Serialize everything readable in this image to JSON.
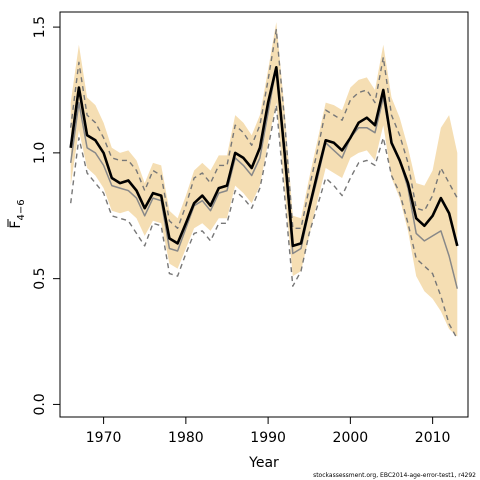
{
  "chart_data": {
    "type": "line",
    "xlabel": "Year",
    "ylabel_main": "F",
    "ylabel_sub": "4−6",
    "xlim": [
      1964.7,
      2014.3
    ],
    "ylim": [
      -0.05,
      1.56
    ],
    "x_ticks": [
      1970,
      1980,
      1990,
      2000,
      2010
    ],
    "y_ticks": [
      0.0,
      0.5,
      1.0,
      1.5
    ],
    "y_tick_labels": [
      "0.0",
      "0.5",
      "1.0",
      "1.5"
    ],
    "grid": false,
    "years": [
      1966,
      1967,
      1968,
      1969,
      1970,
      1971,
      1972,
      1973,
      1974,
      1975,
      1976,
      1977,
      1978,
      1979,
      1980,
      1981,
      1982,
      1983,
      1984,
      1985,
      1986,
      1987,
      1988,
      1989,
      1990,
      1991,
      1992,
      1993,
      1994,
      1995,
      1996,
      1997,
      1998,
      1999,
      2000,
      2001,
      2002,
      2003,
      2004,
      2005,
      2006,
      2007,
      2008,
      2009,
      2010,
      2011,
      2012,
      2013
    ],
    "series": [
      {
        "name": "",
        "role": "band_upper",
        "color": "#f5deb3",
        "values": [
          1.2,
          1.43,
          1.22,
          1.19,
          1.12,
          1.02,
          1.0,
          1.01,
          0.97,
          0.88,
          0.96,
          0.95,
          0.77,
          0.74,
          0.83,
          0.93,
          0.96,
          0.93,
          0.99,
          0.99,
          1.15,
          1.12,
          1.07,
          1.15,
          1.33,
          1.52,
          1.17,
          0.75,
          0.74,
          0.9,
          1.05,
          1.2,
          1.19,
          1.17,
          1.26,
          1.29,
          1.3,
          1.25,
          1.43,
          1.22,
          1.14,
          1.02,
          0.88,
          0.87,
          0.93,
          1.1,
          1.15,
          1.0
        ]
      },
      {
        "name": "",
        "role": "band_lower",
        "color": "#f5deb3",
        "values": [
          0.87,
          1.09,
          0.94,
          0.91,
          0.86,
          0.77,
          0.76,
          0.77,
          0.74,
          0.67,
          0.73,
          0.72,
          0.56,
          0.54,
          0.62,
          0.7,
          0.72,
          0.69,
          0.74,
          0.74,
          0.87,
          0.84,
          0.8,
          0.87,
          1.04,
          1.2,
          0.85,
          0.51,
          0.53,
          0.67,
          0.81,
          0.94,
          0.92,
          0.9,
          0.98,
          1.0,
          1.01,
          0.97,
          1.11,
          0.9,
          0.82,
          0.69,
          0.51,
          0.45,
          0.42,
          0.37,
          0.3,
          0.27
        ]
      },
      {
        "name": "",
        "role": "dashed_upper",
        "color": "#777777",
        "values": [
          1.1,
          1.36,
          1.15,
          1.12,
          1.06,
          0.98,
          0.97,
          0.97,
          0.93,
          0.85,
          0.93,
          0.91,
          0.73,
          0.7,
          0.79,
          0.9,
          0.92,
          0.88,
          0.95,
          0.95,
          1.11,
          1.08,
          1.03,
          1.11,
          1.29,
          1.49,
          1.13,
          0.7,
          0.7,
          0.86,
          1.01,
          1.17,
          1.15,
          1.13,
          1.21,
          1.24,
          1.25,
          1.2,
          1.38,
          1.15,
          1.07,
          0.96,
          0.78,
          0.77,
          0.83,
          0.94,
          0.88,
          0.82
        ]
      },
      {
        "name": "",
        "role": "dashed_lower",
        "color": "#777777",
        "values": [
          0.8,
          1.06,
          0.92,
          0.88,
          0.84,
          0.75,
          0.74,
          0.73,
          0.68,
          0.63,
          0.72,
          0.71,
          0.52,
          0.51,
          0.6,
          0.68,
          0.69,
          0.65,
          0.72,
          0.72,
          0.85,
          0.82,
          0.78,
          0.86,
          1.02,
          1.19,
          0.83,
          0.47,
          0.53,
          0.68,
          0.79,
          0.9,
          0.87,
          0.83,
          0.9,
          0.96,
          0.97,
          0.95,
          1.06,
          0.91,
          0.84,
          0.72,
          0.58,
          0.55,
          0.52,
          0.43,
          0.32,
          0.26
        ]
      },
      {
        "name": "",
        "role": "grey_line",
        "color": "#888888",
        "values": [
          0.96,
          1.2,
          1.02,
          1.0,
          0.95,
          0.87,
          0.86,
          0.85,
          0.82,
          0.75,
          0.82,
          0.81,
          0.62,
          0.61,
          0.7,
          0.79,
          0.81,
          0.77,
          0.84,
          0.85,
          0.98,
          0.95,
          0.91,
          0.98,
          1.16,
          1.34,
          0.98,
          0.6,
          0.62,
          0.77,
          0.9,
          1.04,
          1.01,
          0.98,
          1.06,
          1.1,
          1.1,
          1.08,
          1.22,
          1.04,
          0.97,
          0.86,
          0.68,
          0.65,
          0.67,
          0.69,
          0.59,
          0.46
        ]
      },
      {
        "name": "",
        "role": "main_line",
        "color": "#000000",
        "values": [
          1.02,
          1.26,
          1.07,
          1.05,
          1.0,
          0.9,
          0.88,
          0.89,
          0.85,
          0.78,
          0.84,
          0.83,
          0.66,
          0.64,
          0.72,
          0.8,
          0.83,
          0.79,
          0.86,
          0.87,
          1.0,
          0.98,
          0.94,
          1.02,
          1.2,
          1.34,
          1.0,
          0.63,
          0.64,
          0.78,
          0.92,
          1.05,
          1.04,
          1.01,
          1.06,
          1.12,
          1.14,
          1.11,
          1.25,
          1.04,
          0.97,
          0.88,
          0.74,
          0.71,
          0.75,
          0.82,
          0.76,
          0.63
        ]
      }
    ]
  },
  "footer": "stockassessment.org, EBC2014-age-error-test1, r4292"
}
